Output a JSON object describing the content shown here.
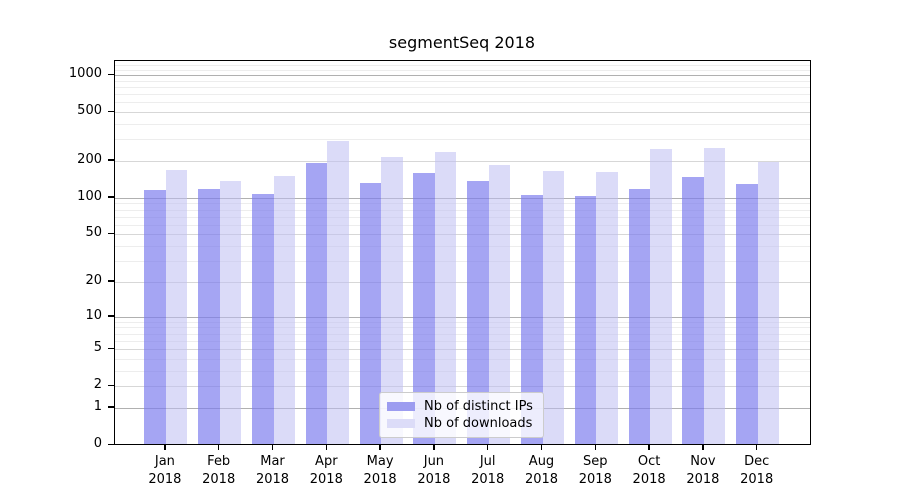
{
  "title": "segmentSeq 2018",
  "colors": {
    "distinct_ips_bar": "#a4a4f3",
    "downloads_bar": "#dbdbf9",
    "grid_major": "#b0b0b0",
    "grid_mid": "#d7d7d7",
    "grid_minor": "#ededed"
  },
  "y_axis": {
    "ticks": [
      1000,
      500,
      200,
      100,
      50,
      20,
      10,
      5,
      2,
      1,
      0
    ],
    "scale": "log10(value+1)",
    "max": 1300
  },
  "legend": {
    "items": [
      {
        "label": "Nb of distinct IPs",
        "color": "#9c9cf0"
      },
      {
        "label": "Nb of downloads",
        "color": "#dcdcf8"
      }
    ]
  },
  "chart_data": {
    "type": "bar",
    "title": "segmentSeq 2018",
    "categories": [
      "Jan 2018",
      "Feb 2018",
      "Mar 2018",
      "Apr 2018",
      "May 2018",
      "Jun 2018",
      "Jul 2018",
      "Aug 2018",
      "Sep 2018",
      "Oct 2018",
      "Nov 2018",
      "Dec 2018"
    ],
    "series": [
      {
        "name": "Nb of distinct IPs",
        "values": [
          114,
          115,
          105,
          188,
          131,
          157,
          134,
          104,
          101,
          117,
          145,
          128
        ]
      },
      {
        "name": "Nb of downloads",
        "values": [
          166,
          134,
          147,
          286,
          211,
          234,
          182,
          164,
          159,
          248,
          250,
          192
        ]
      }
    ],
    "xlabel": "",
    "ylabel": "",
    "yscale": "log1p",
    "ylim": [
      0,
      1300
    ],
    "ytick_labels": [
      "0",
      "1",
      "2",
      "5",
      "10",
      "20",
      "50",
      "100",
      "200",
      "500",
      "1000"
    ],
    "grid": true,
    "legend_position": "lower center inside plot"
  }
}
